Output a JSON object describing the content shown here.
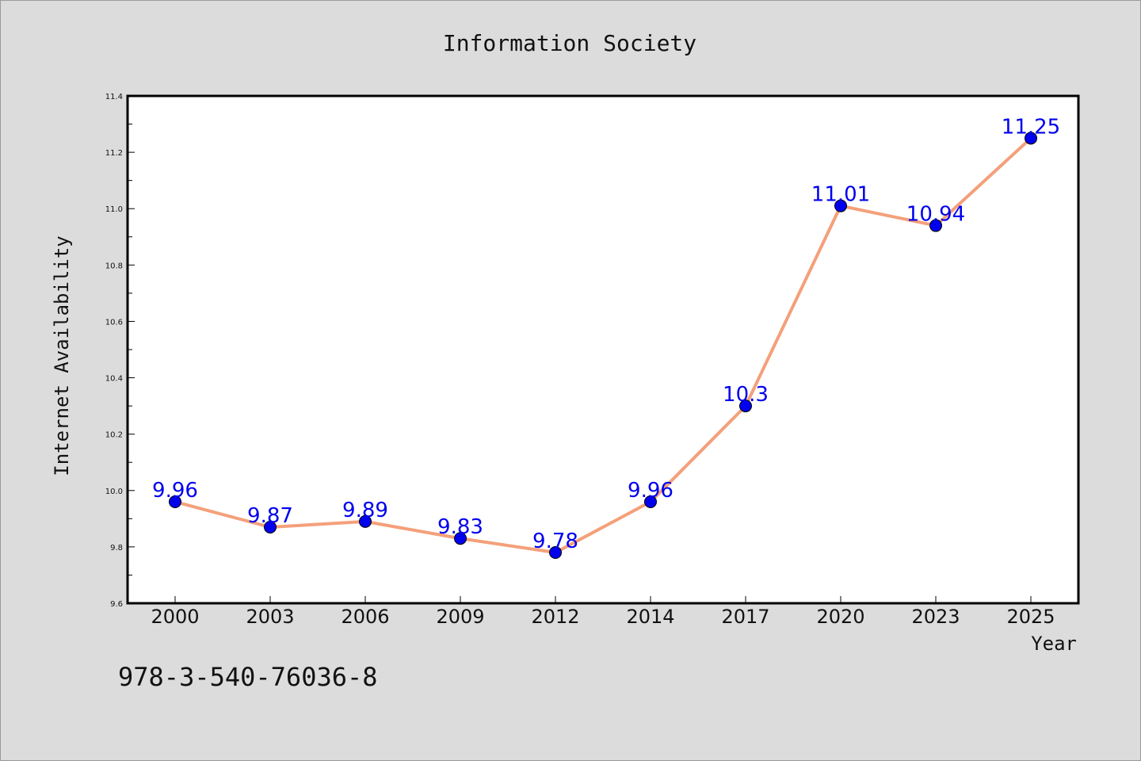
{
  "chart_data": {
    "type": "line",
    "title": "Information Society",
    "xlabel": "Year",
    "ylabel": "Internet Availability",
    "categories": [
      "2000",
      "2003",
      "2006",
      "2009",
      "2012",
      "2014",
      "2017",
      "2020",
      "2023",
      "2025"
    ],
    "series": [
      {
        "values": [
          9.96,
          9.87,
          9.89,
          9.83,
          9.78,
          9.96,
          10.3,
          11.01,
          10.94,
          11.25
        ],
        "labels": [
          "9.96",
          "9.87",
          "9.89",
          "9.83",
          "9.78",
          "9.96",
          "10.3",
          "11.01",
          "10.94",
          "11.25"
        ]
      }
    ],
    "ylim": [
      9.6,
      11.4
    ],
    "yticks": [
      "9.6",
      "9.8",
      "10.0",
      "10.2",
      "10.4",
      "10.6",
      "10.8",
      "11.0",
      "11.2",
      "11.4"
    ],
    "grid": false,
    "line_color": "#f4a07a",
    "marker_color": "#0000ee",
    "label_color": "#0000ee"
  },
  "footer": {
    "isbn": "978-3-540-76036-8"
  }
}
